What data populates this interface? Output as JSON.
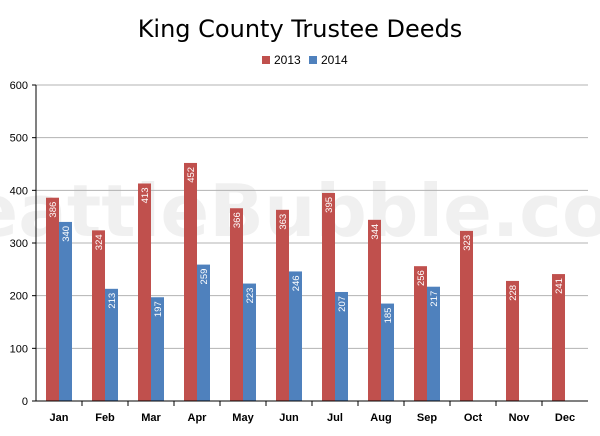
{
  "watermark": "SeattleBubble.com",
  "colors": {
    "series_2013": "#c0504d",
    "series_2014": "#4f81bd",
    "grid": "#b3b3b3"
  },
  "chart_data": {
    "type": "bar",
    "title": "King County Trustee Deeds",
    "categories": [
      "Jan",
      "Feb",
      "Mar",
      "Apr",
      "May",
      "Jun",
      "Jul",
      "Aug",
      "Sep",
      "Oct",
      "Nov",
      "Dec"
    ],
    "series": [
      {
        "name": "2013",
        "values": [
          386,
          324,
          413,
          452,
          366,
          363,
          395,
          344,
          256,
          323,
          228,
          241
        ]
      },
      {
        "name": "2014",
        "values": [
          340,
          213,
          197,
          259,
          223,
          246,
          207,
          185,
          217,
          null,
          null,
          null
        ]
      }
    ],
    "ylim": [
      0,
      600
    ],
    "yticks": [
      0,
      100,
      200,
      300,
      400,
      500,
      600
    ],
    "grid": true,
    "legend": "top-center"
  }
}
